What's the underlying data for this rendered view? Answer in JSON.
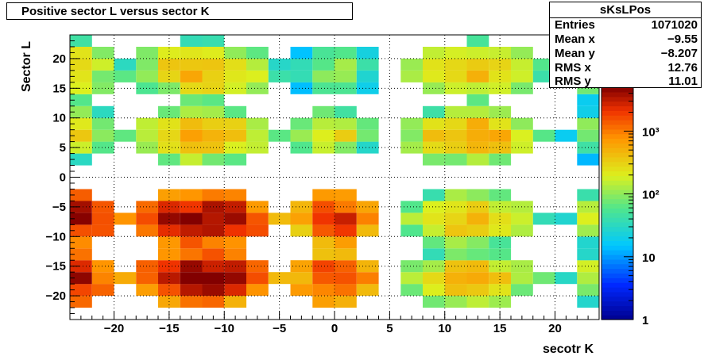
{
  "chart_data": {
    "type": "heatmap",
    "title": "Positive sector L versus sector K",
    "xlabel": "secotr K",
    "ylabel": "Sector L",
    "xlim": [
      -24,
      24
    ],
    "ylim": [
      -24,
      24
    ],
    "x_ticks": [
      -20,
      -15,
      -10,
      -5,
      0,
      5,
      10,
      15,
      20
    ],
    "y_ticks": [
      -20,
      -15,
      -10,
      -5,
      0,
      5,
      10,
      15,
      20
    ],
    "z_scale": "log",
    "zlim": [
      1,
      5000
    ],
    "colorbar_ticks": [
      {
        "value": 1,
        "label": "1"
      },
      {
        "value": 10,
        "label": "10"
      },
      {
        "value": 100,
        "label": "10²"
      },
      {
        "value": 1000,
        "label": "10³"
      }
    ],
    "grid": true,
    "stats": {
      "name": "sKsLPos",
      "rows": [
        {
          "label": "Entries",
          "value": "1071020"
        },
        {
          "label": "Mean x",
          "value": "−9.55"
        },
        {
          "label": "Mean y",
          "value": "−8.207"
        },
        {
          "label": "RMS x",
          "value": "12.76"
        },
        {
          "label": "RMS y",
          "value": "11.01"
        }
      ]
    },
    "clusters": [
      {
        "x": [
          -26,
          -20
        ],
        "y": [
          13,
          23
        ],
        "peak": 400
      },
      {
        "x": [
          -19,
          -5
        ],
        "y": [
          13,
          23
        ],
        "peak": 500
      },
      {
        "x": [
          -4,
          4
        ],
        "y": [
          13,
          23
        ],
        "peak": 120
      },
      {
        "x": [
          6,
          19
        ],
        "y": [
          13,
          23
        ],
        "peak": 500
      },
      {
        "x": [
          21,
          26
        ],
        "y": [
          13,
          23
        ],
        "peak": 150
      },
      {
        "x": [
          -26,
          -20
        ],
        "y": [
          3,
          12
        ],
        "peak": 300
      },
      {
        "x": [
          -19,
          -5
        ],
        "y": [
          2,
          12
        ],
        "peak": 500
      },
      {
        "x": [
          -4,
          4
        ],
        "y": [
          3,
          12
        ],
        "peak": 300
      },
      {
        "x": [
          6,
          19
        ],
        "y": [
          2,
          12
        ],
        "peak": 600
      },
      {
        "x": [
          21,
          26
        ],
        "y": [
          3,
          12
        ],
        "peak": 150
      },
      {
        "x": [
          -26,
          -20
        ],
        "y": [
          -12,
          -2
        ],
        "peak": 4000
      },
      {
        "x": [
          -19,
          -5
        ],
        "y": [
          -12,
          -2
        ],
        "peak": 5000
      },
      {
        "x": [
          -4,
          4
        ],
        "y": [
          -12,
          -2
        ],
        "peak": 2500
      },
      {
        "x": [
          6,
          19
        ],
        "y": [
          -12,
          -2
        ],
        "peak": 500
      },
      {
        "x": [
          21,
          26
        ],
        "y": [
          -12,
          -2
        ],
        "peak": 200
      },
      {
        "x": [
          -26,
          -20
        ],
        "y": [
          -22,
          -12
        ],
        "peak": 4000
      },
      {
        "x": [
          -19,
          -5
        ],
        "y": [
          -22,
          -12
        ],
        "peak": 5000
      },
      {
        "x": [
          -4,
          4
        ],
        "y": [
          -22,
          -12
        ],
        "peak": 2500
      },
      {
        "x": [
          6,
          19
        ],
        "y": [
          -22,
          -12
        ],
        "peak": 500
      },
      {
        "x": [
          21,
          26
        ],
        "y": [
          -22,
          -12
        ],
        "peak": 200
      }
    ]
  }
}
